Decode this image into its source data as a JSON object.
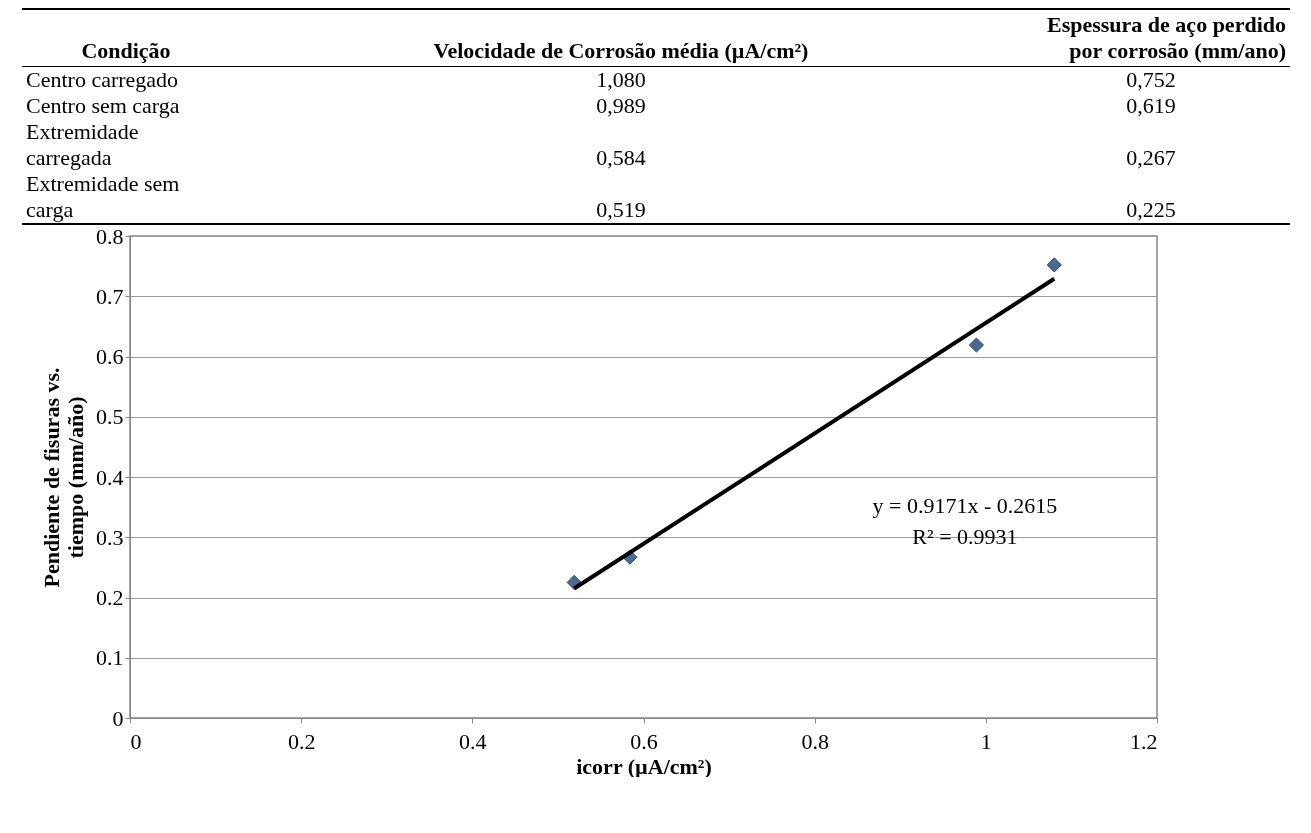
{
  "chart_data": [
    {
      "type": "other",
      "annotations": [
        "Condição",
        "Velocidade de Corrosão média (µA/cm²)",
        "Espessura de aço perdido por corrosão (mm/ano)",
        "Centro carregado",
        "1,080",
        "0,752",
        "Centro sem carga",
        "0,989",
        "0,619",
        "Extremidade carregada",
        "0,584",
        "0,267",
        "Extremidade sem carga",
        "0,519",
        "0,225"
      ]
    },
    {
      "type": "scatter",
      "xlabel": "icorr (µA/cm²)",
      "ylabel": "Pendiente de fisuras vs. tiempo (mm/año)",
      "xlim": [
        0,
        1.2
      ],
      "xticks": [
        0,
        0.2,
        0.4,
        0.6,
        0.8,
        1,
        1.2
      ],
      "ylim": [
        0,
        0.8
      ],
      "yticks": [
        0,
        0.1,
        0.2,
        0.3,
        0.4,
        0.5,
        0.6,
        0.7,
        0.8
      ],
      "grid": "y",
      "annotations": [
        "y = 0.9171x - 0.2615",
        "R² = 0.9931"
      ],
      "series": [
        {
          "color": "#4a6a94",
          "marker": "diamond",
          "x": [
            1.08,
            0.989,
            0.584,
            0.519
          ],
          "values": [
            0.752,
            0.619,
            0.267,
            0.225
          ]
        },
        {
          "type": "line",
          "color": "#000000",
          "line_style": "solid",
          "x": [
            0.519,
            1.08
          ],
          "values": [
            0.215,
            0.729
          ]
        }
      ]
    }
  ]
}
